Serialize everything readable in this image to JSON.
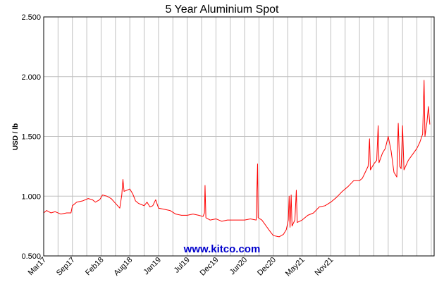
{
  "chart_data": {
    "type": "line",
    "title": "5 Year Aluminium Spot",
    "xlabel": "",
    "ylabel": "USD / lb",
    "ylim": [
      0.5,
      2.5
    ],
    "y_ticks": [
      "0.500",
      "1.000",
      "1.500",
      "2.000",
      "2.500"
    ],
    "x_ticks": [
      "Mar17",
      "Sep17",
      "Feb18",
      "Aug18",
      "Jan19",
      "Jul19",
      "Dec19",
      "Jun20",
      "Dec20",
      "May21",
      "Nov21"
    ],
    "grid": true,
    "watermark": "www.kitco.com",
    "colors": {
      "line": "#ff0000",
      "watermark": "#0000cc",
      "grid": "#c0c0c0",
      "frame": "#000000"
    },
    "series": [
      {
        "values": [
          [
            0.0,
            0.86
          ],
          [
            0.1,
            0.88
          ],
          [
            0.25,
            0.86
          ],
          [
            0.4,
            0.87
          ],
          [
            0.6,
            0.85
          ],
          [
            0.8,
            0.86
          ],
          [
            0.95,
            0.86
          ],
          [
            1.0,
            0.92
          ],
          [
            1.15,
            0.95
          ],
          [
            1.35,
            0.96
          ],
          [
            1.55,
            0.98
          ],
          [
            1.7,
            0.97
          ],
          [
            1.8,
            0.95
          ],
          [
            1.95,
            0.97
          ],
          [
            2.05,
            1.01
          ],
          [
            2.2,
            1.0
          ],
          [
            2.35,
            0.98
          ],
          [
            2.5,
            0.94
          ],
          [
            2.65,
            0.9
          ],
          [
            2.72,
            1.01
          ],
          [
            2.76,
            1.14
          ],
          [
            2.8,
            1.04
          ],
          [
            2.9,
            1.05
          ],
          [
            3.0,
            1.06
          ],
          [
            3.1,
            1.02
          ],
          [
            3.2,
            0.96
          ],
          [
            3.3,
            0.94
          ],
          [
            3.4,
            0.93
          ],
          [
            3.5,
            0.92
          ],
          [
            3.6,
            0.95
          ],
          [
            3.7,
            0.91
          ],
          [
            3.8,
            0.92
          ],
          [
            3.9,
            0.97
          ],
          [
            4.0,
            0.9
          ],
          [
            4.2,
            0.89
          ],
          [
            4.4,
            0.88
          ],
          [
            4.6,
            0.85
          ],
          [
            4.8,
            0.84
          ],
          [
            5.0,
            0.84
          ],
          [
            5.2,
            0.85
          ],
          [
            5.4,
            0.84
          ],
          [
            5.55,
            0.83
          ],
          [
            5.6,
            0.86
          ],
          [
            5.62,
            1.09
          ],
          [
            5.65,
            0.82
          ],
          [
            5.8,
            0.8
          ],
          [
            6.0,
            0.81
          ],
          [
            6.2,
            0.79
          ],
          [
            6.4,
            0.8
          ],
          [
            6.6,
            0.8
          ],
          [
            6.8,
            0.8
          ],
          [
            7.0,
            0.8
          ],
          [
            7.2,
            0.81
          ],
          [
            7.4,
            0.8
          ],
          [
            7.45,
            1.27
          ],
          [
            7.47,
            0.82
          ],
          [
            7.6,
            0.8
          ],
          [
            7.75,
            0.75
          ],
          [
            7.9,
            0.7
          ],
          [
            8.0,
            0.67
          ],
          [
            8.2,
            0.66
          ],
          [
            8.35,
            0.68
          ],
          [
            8.45,
            0.72
          ],
          [
            8.52,
            0.8
          ],
          [
            8.55,
            1.0
          ],
          [
            8.58,
            0.74
          ],
          [
            8.62,
            1.01
          ],
          [
            8.65,
            0.75
          ],
          [
            8.75,
            0.8
          ],
          [
            8.8,
            1.05
          ],
          [
            8.83,
            0.78
          ],
          [
            9.0,
            0.8
          ],
          [
            9.2,
            0.84
          ],
          [
            9.4,
            0.86
          ],
          [
            9.6,
            0.91
          ],
          [
            9.8,
            0.92
          ],
          [
            10.0,
            0.95
          ],
          [
            10.2,
            0.99
          ],
          [
            10.4,
            1.04
          ],
          [
            10.6,
            1.08
          ],
          [
            10.8,
            1.13
          ],
          [
            11.0,
            1.13
          ],
          [
            11.1,
            1.15
          ],
          [
            11.2,
            1.2
          ],
          [
            11.3,
            1.25
          ],
          [
            11.35,
            1.48
          ],
          [
            11.38,
            1.22
          ],
          [
            11.5,
            1.27
          ],
          [
            11.6,
            1.3
          ],
          [
            11.65,
            1.59
          ],
          [
            11.68,
            1.28
          ],
          [
            11.8,
            1.36
          ],
          [
            11.9,
            1.4
          ],
          [
            12.0,
            1.5
          ],
          [
            12.1,
            1.38
          ],
          [
            12.2,
            1.2
          ],
          [
            12.3,
            1.16
          ],
          [
            12.35,
            1.61
          ],
          [
            12.4,
            1.25
          ],
          [
            12.45,
            1.23
          ],
          [
            12.5,
            1.59
          ],
          [
            12.55,
            1.22
          ],
          [
            12.7,
            1.3
          ],
          [
            12.85,
            1.35
          ],
          [
            13.0,
            1.4
          ],
          [
            13.1,
            1.45
          ],
          [
            13.2,
            1.52
          ],
          [
            13.25,
            1.97
          ],
          [
            13.28,
            1.5
          ],
          [
            13.35,
            1.62
          ],
          [
            13.4,
            1.75
          ],
          [
            13.45,
            1.6
          ]
        ]
      }
    ]
  }
}
